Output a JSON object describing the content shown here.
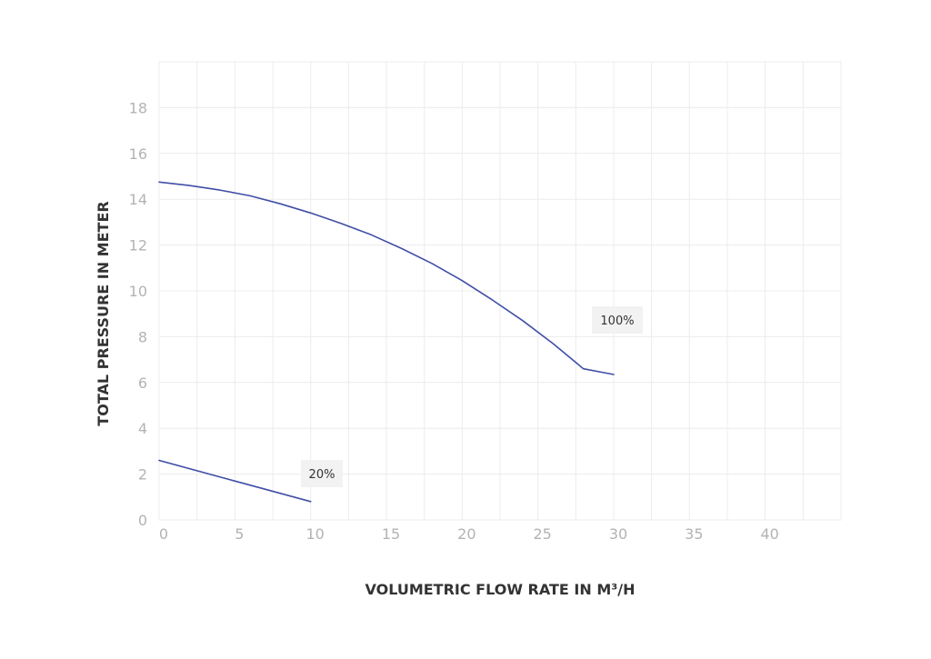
{
  "chart_data": {
    "type": "line",
    "title": "",
    "xlabel": "VOLUMETRIC FLOW RATE IN M³/H",
    "ylabel": "TOTAL PRESSURE IN METER",
    "xlim": [
      0,
      45
    ],
    "ylim": [
      0,
      20
    ],
    "x_ticks": [
      "0",
      "5",
      "10",
      "15",
      "20",
      "25",
      "30",
      "35",
      "40"
    ],
    "y_ticks": [
      "0",
      "2",
      "4",
      "6",
      "8",
      "10",
      "12",
      "14",
      "16",
      "18"
    ],
    "grid": true,
    "colors": {
      "line": "#3f4fa6",
      "grid": "#ececec",
      "label_bg": "#f2f2f2",
      "tick_text": "#b3b3b3",
      "axis_title": "#333333"
    },
    "series": [
      {
        "name": "100%",
        "x": [
          0,
          2,
          4,
          6,
          8,
          10,
          12,
          14,
          16,
          18,
          20,
          22,
          24,
          26,
          28,
          30
        ],
        "y": [
          14.75,
          14.6,
          14.4,
          14.15,
          13.8,
          13.4,
          12.95,
          12.45,
          11.85,
          11.2,
          10.45,
          9.6,
          8.7,
          7.7,
          6.6,
          6.35
        ]
      },
      {
        "name": "20%",
        "x": [
          0,
          5,
          10
        ],
        "y": [
          2.6,
          1.7,
          0.8
        ]
      }
    ]
  }
}
